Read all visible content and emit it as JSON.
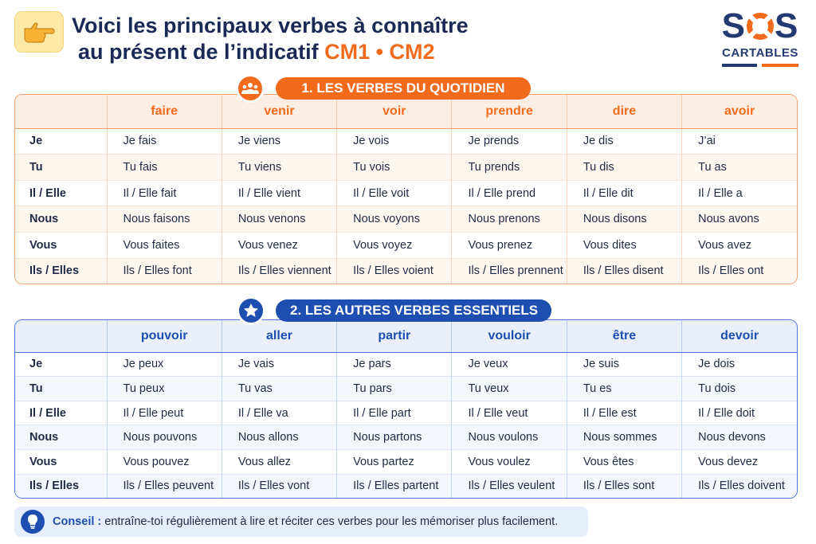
{
  "header": {
    "title_line1": "Voici les principaux verbes à connaître",
    "title_line2": "au présent de l’indicatif",
    "title_accent": "CM1 • CM2",
    "hand_icon": "pointing-hand-icon"
  },
  "logo": {
    "line1": "SOS",
    "line2": "CARTABLES",
    "colors": {
      "navy": "#243a73",
      "orange": "#f26b1d"
    }
  },
  "section1": {
    "label": "1. LES VERBES DU QUOTIDIEN",
    "icon": "group-people-icon",
    "color": "#f26b1d",
    "verbs": [
      "faire",
      "venir",
      "voir",
      "prendre",
      "dire",
      "avoir"
    ],
    "rows": [
      {
        "pronoun": "Je",
        "forms": [
          "Je fais",
          "Je viens",
          "Je vois",
          "Je prends",
          "Je dis",
          "J’ai"
        ]
      },
      {
        "pronoun": "Tu",
        "forms": [
          "Tu fais",
          "Tu viens",
          "Tu vois",
          "Tu prends",
          "Tu dis",
          "Tu as"
        ]
      },
      {
        "pronoun": "Il / Elle",
        "forms": [
          "Il / Elle fait",
          "Il / Elle vient",
          "Il / Elle voit",
          "Il / Elle prend",
          "Il / Elle dit",
          "Il / Elle a"
        ]
      },
      {
        "pronoun": "Nous",
        "forms": [
          "Nous faisons",
          "Nous venons",
          "Nous voyons",
          "Nous prenons",
          "Nous disons",
          "Nous avons"
        ]
      },
      {
        "pronoun": "Vous",
        "forms": [
          "Vous faites",
          "Vous venez",
          "Vous voyez",
          "Vous prenez",
          "Vous dites",
          "Vous avez"
        ]
      },
      {
        "pronoun": "Ils / Elles",
        "forms": [
          "Ils / Elles font",
          "Ils / Elles viennent",
          "Ils / Elles voient",
          "Ils / Elles prennent",
          "Ils / Elles disent",
          "Ils / Elles ont"
        ]
      }
    ]
  },
  "section2": {
    "label": "2. LES AUTRES VERBES ESSENTIELS",
    "icon": "star-icon",
    "color": "#1e4fb0",
    "verbs": [
      "pouvoir",
      "aller",
      "partir",
      "vouloir",
      "être",
      "devoir"
    ],
    "rows": [
      {
        "pronoun": "Je",
        "forms": [
          "Je peux",
          "Je vais",
          "Je pars",
          "Je veux",
          "Je suis",
          "Je dois"
        ]
      },
      {
        "pronoun": "Tu",
        "forms": [
          "Tu peux",
          "Tu vas",
          "Tu pars",
          "Tu veux",
          "Tu es",
          "Tu dois"
        ]
      },
      {
        "pronoun": "Il / Elle",
        "forms": [
          "Il / Elle peut",
          "Il / Elle va",
          "Il / Elle part",
          "Il / Elle veut",
          "Il / Elle est",
          "Il / Elle doit"
        ]
      },
      {
        "pronoun": "Nous",
        "forms": [
          "Nous pouvons",
          "Nous allons",
          "Nous partons",
          "Nous voulons",
          "Nous sommes",
          "Nous devons"
        ]
      },
      {
        "pronoun": "Vous",
        "forms": [
          "Vous pouvez",
          "Vous allez",
          "Vous partez",
          "Vous voulez",
          "Vous êtes",
          "Vous devez"
        ]
      },
      {
        "pronoun": "Ils / Elles",
        "forms": [
          "Ils / Elles peuvent",
          "Ils / Elles vont",
          "Ils / Elles partent",
          "Ils / Elles veulent",
          "Ils / Elles sont",
          "Ils / Elles doivent"
        ]
      }
    ]
  },
  "tip": {
    "icon": "lightbulb-icon",
    "label": "Conseil :",
    "text": "entraîne-toi régulièrement à lire et réciter ces verbes pour les mémoriser plus facilement."
  }
}
